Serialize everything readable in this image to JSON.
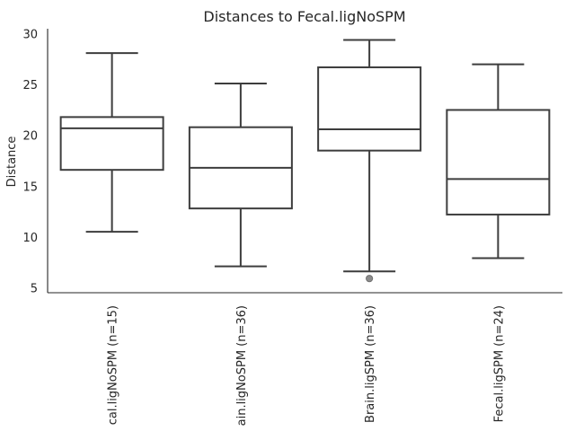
{
  "chart_data": {
    "type": "box",
    "title": "Distances to Fecal.ligNoSPM",
    "xlabel": "",
    "ylabel": "Distance",
    "ylim": [
      4.5,
      30.5
    ],
    "yticks": [
      5,
      10,
      15,
      20,
      25,
      30
    ],
    "categories": [
      "cal.ligNoSPM (n=15)",
      "ain.ligNoSPM (n=36)",
      "Brain.ligSPM (n=36)",
      "Fecal.ligSPM (n=24)"
    ],
    "boxes": [
      {
        "whisker_low": 10.5,
        "q1": 16.6,
        "median": 20.7,
        "q3": 21.8,
        "whisker_high": 28.1,
        "outliers": []
      },
      {
        "whisker_low": 7.1,
        "q1": 12.8,
        "median": 16.8,
        "q3": 20.8,
        "whisker_high": 25.1,
        "outliers": []
      },
      {
        "whisker_low": 6.6,
        "q1": 18.5,
        "median": 20.6,
        "q3": 26.7,
        "whisker_high": 29.4,
        "outliers": [
          5.9
        ]
      },
      {
        "whisker_low": 7.9,
        "q1": 12.2,
        "median": 15.7,
        "q3": 22.5,
        "whisker_high": 27.0,
        "outliers": []
      }
    ],
    "grid": false,
    "legend": "none"
  }
}
